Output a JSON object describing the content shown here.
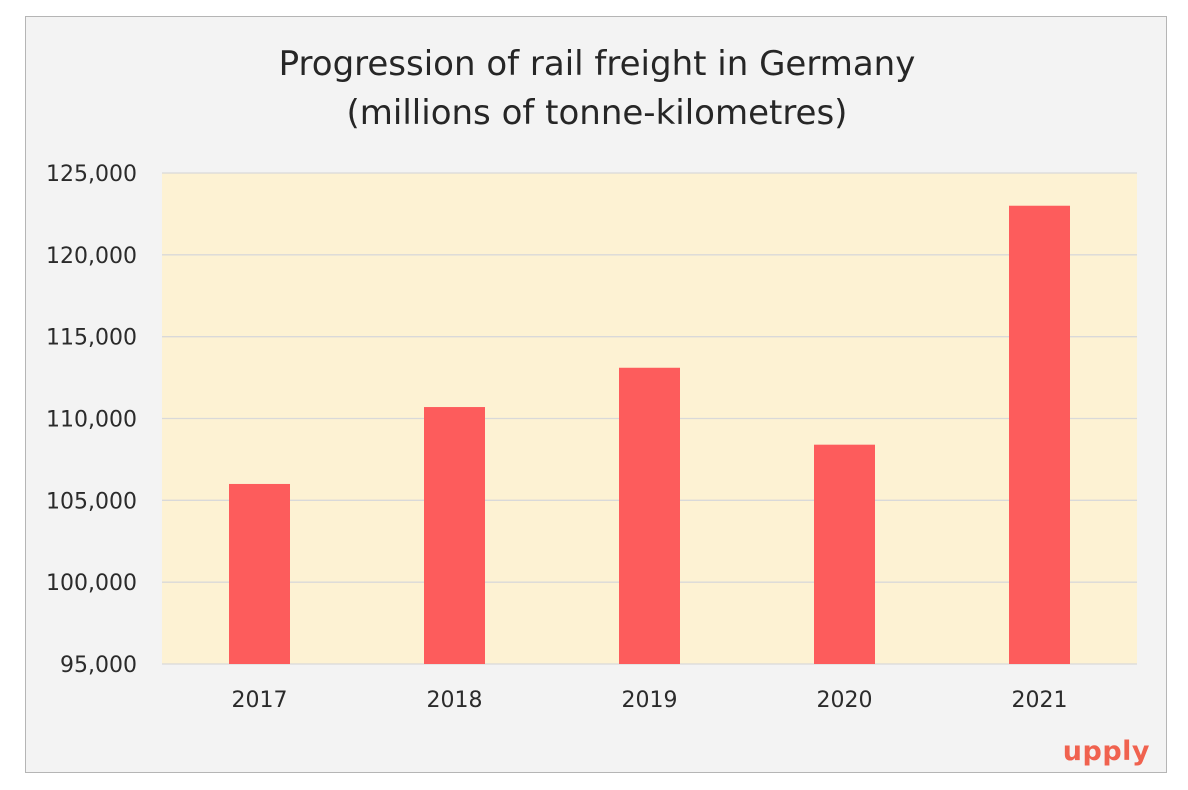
{
  "chart_data": {
    "type": "bar",
    "title": "Progression of rail freight in Germany",
    "subtitle": "(millions of tonne-kilometres)",
    "xlabel": "",
    "ylabel": "",
    "categories": [
      "2017",
      "2018",
      "2019",
      "2020",
      "2021"
    ],
    "values": [
      106000,
      110700,
      113100,
      108400,
      123000
    ],
    "ylim": [
      95000,
      125000
    ],
    "yticks": [
      95000,
      100000,
      105000,
      110000,
      115000,
      120000,
      125000
    ],
    "ytick_labels": [
      "95,000",
      "100,000",
      "105,000",
      "110,000",
      "115,000",
      "120,000",
      "125,000"
    ],
    "grid": true,
    "legend": "none",
    "colors": {
      "bar": "#fd5c5c",
      "plot_background": "#fdf2d3",
      "page_background": "#f3f3f3",
      "gridline": "#d9d9d9"
    }
  },
  "brand": {
    "logo_text": "upply",
    "color": "#f0624f"
  }
}
